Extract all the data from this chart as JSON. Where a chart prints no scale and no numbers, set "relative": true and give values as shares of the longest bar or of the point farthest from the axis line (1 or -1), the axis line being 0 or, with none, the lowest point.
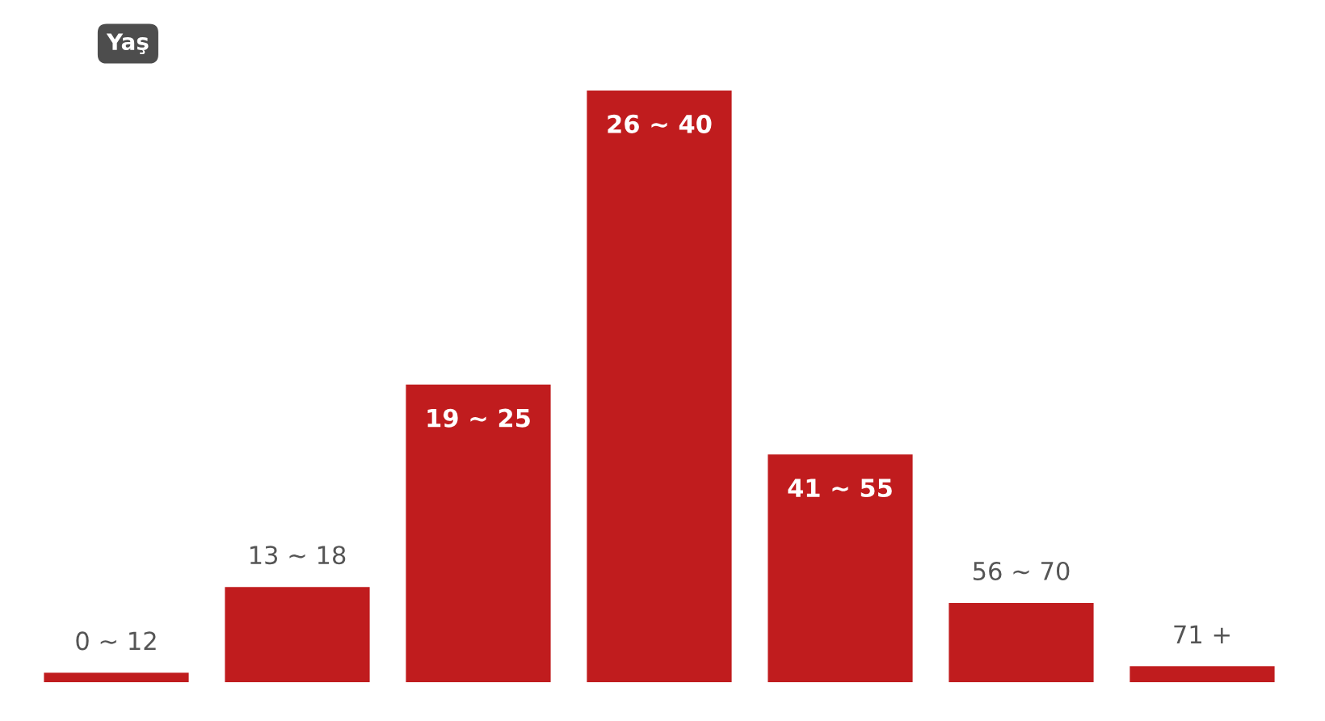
{
  "chart_data": {
    "type": "bar",
    "title": "Yaş",
    "relative": true,
    "categories": [
      "0 ~ 12",
      "13 ~ 18",
      "19 ~ 25",
      "26 ~ 40",
      "41 ~ 55",
      "56 ~ 70",
      "71 +"
    ],
    "values": [
      0.016,
      0.161,
      0.503,
      1,
      0.385,
      0.134,
      0.027
    ],
    "color": "#c01c1e"
  }
}
